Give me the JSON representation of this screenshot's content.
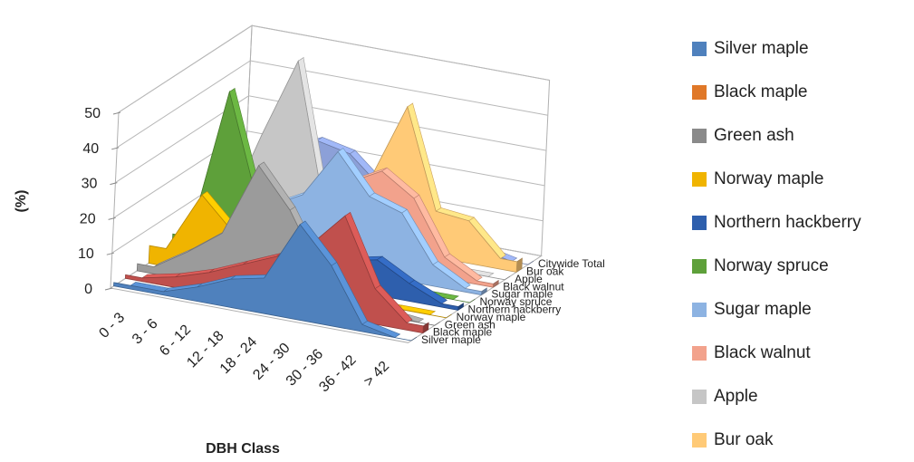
{
  "chart_data": {
    "type": "area",
    "subtype": "3d-area",
    "ylabel": "(%)",
    "xlabel": "DBH Class",
    "ylim": [
      0,
      50
    ],
    "yticks": [
      0,
      10,
      20,
      30,
      40,
      50
    ],
    "categories": [
      "0 - 3",
      "3 - 6",
      "6 - 12",
      "12 - 18",
      "18 - 24",
      "24 - 30",
      "30 - 36",
      "36 - 42",
      "> 42"
    ],
    "depth_labels": [
      "Silver maple",
      "Black maple",
      "Green ash",
      "Norway maple",
      "Northern hackberry",
      "Norway spruce",
      "Sugar maple",
      "Black walnut",
      "Apple",
      "Bur oak",
      "Citywide Total"
    ],
    "legend_position": "right",
    "grid": true,
    "series": [
      {
        "name": "Silver maple",
        "color": "#4F81BD",
        "values": [
          1,
          1,
          4,
          8,
          10,
          27,
          17,
          2,
          0
        ]
      },
      {
        "name": "Black maple",
        "color": "#C0504D",
        "values": [
          1,
          3,
          6,
          10,
          14,
          19,
          29,
          10,
          2
        ]
      },
      {
        "name": "Green ash",
        "color": "#9B9B9B",
        "values": [
          2,
          8,
          15,
          36,
          25,
          9,
          3,
          1,
          0
        ]
      },
      {
        "name": "Norway maple",
        "color": "#F0B400",
        "values": [
          5,
          22,
          13,
          8,
          3,
          1,
          0,
          0,
          0
        ]
      },
      {
        "name": "Northern hackberry",
        "color": "#2E5FAD",
        "values": [
          2,
          7,
          15,
          19,
          12,
          8,
          10,
          5,
          1
        ]
      },
      {
        "name": "Norway spruce",
        "color": "#5EA03A",
        "values": [
          4,
          47,
          17,
          2,
          0,
          0,
          0,
          0,
          0
        ]
      },
      {
        "name": "Sugar maple",
        "color": "#8DB3E2",
        "values": [
          5,
          9,
          14,
          19,
          33,
          22,
          19,
          6,
          1
        ]
      },
      {
        "name": "Black walnut",
        "color": "#F2A28C",
        "values": [
          1,
          3,
          6,
          12,
          22,
          27,
          21,
          6,
          1
        ]
      },
      {
        "name": "Apple",
        "color": "#C6C6C6",
        "values": [
          3,
          28,
          51,
          10,
          3,
          1,
          0,
          0,
          0
        ]
      },
      {
        "name": "Bur oak",
        "color": "#FFCA77",
        "values": [
          1,
          2,
          4,
          8,
          19,
          41,
          13,
          12,
          3
        ]
      },
      {
        "name": "Citywide Total",
        "color": "#8CA0D8",
        "values": [
          6,
          20,
          24,
          22,
          14,
          8,
          4,
          2,
          0
        ]
      }
    ]
  },
  "legend": [
    {
      "label": "Silver maple",
      "color": "#4F81BD"
    },
    {
      "label": "Black maple",
      "color": "#E07828"
    },
    {
      "label": "Green ash",
      "color": "#8A8A8A"
    },
    {
      "label": "Norway maple",
      "color": "#F0B400"
    },
    {
      "label": "Northern hackberry",
      "color": "#2E5FAD"
    },
    {
      "label": "Norway spruce",
      "color": "#5EA03A"
    },
    {
      "label": "Sugar maple",
      "color": "#8DB3E2"
    },
    {
      "label": "Black walnut",
      "color": "#F2A28C"
    },
    {
      "label": "Apple",
      "color": "#C6C6C6"
    },
    {
      "label": "Bur oak",
      "color": "#FFCA77"
    }
  ]
}
